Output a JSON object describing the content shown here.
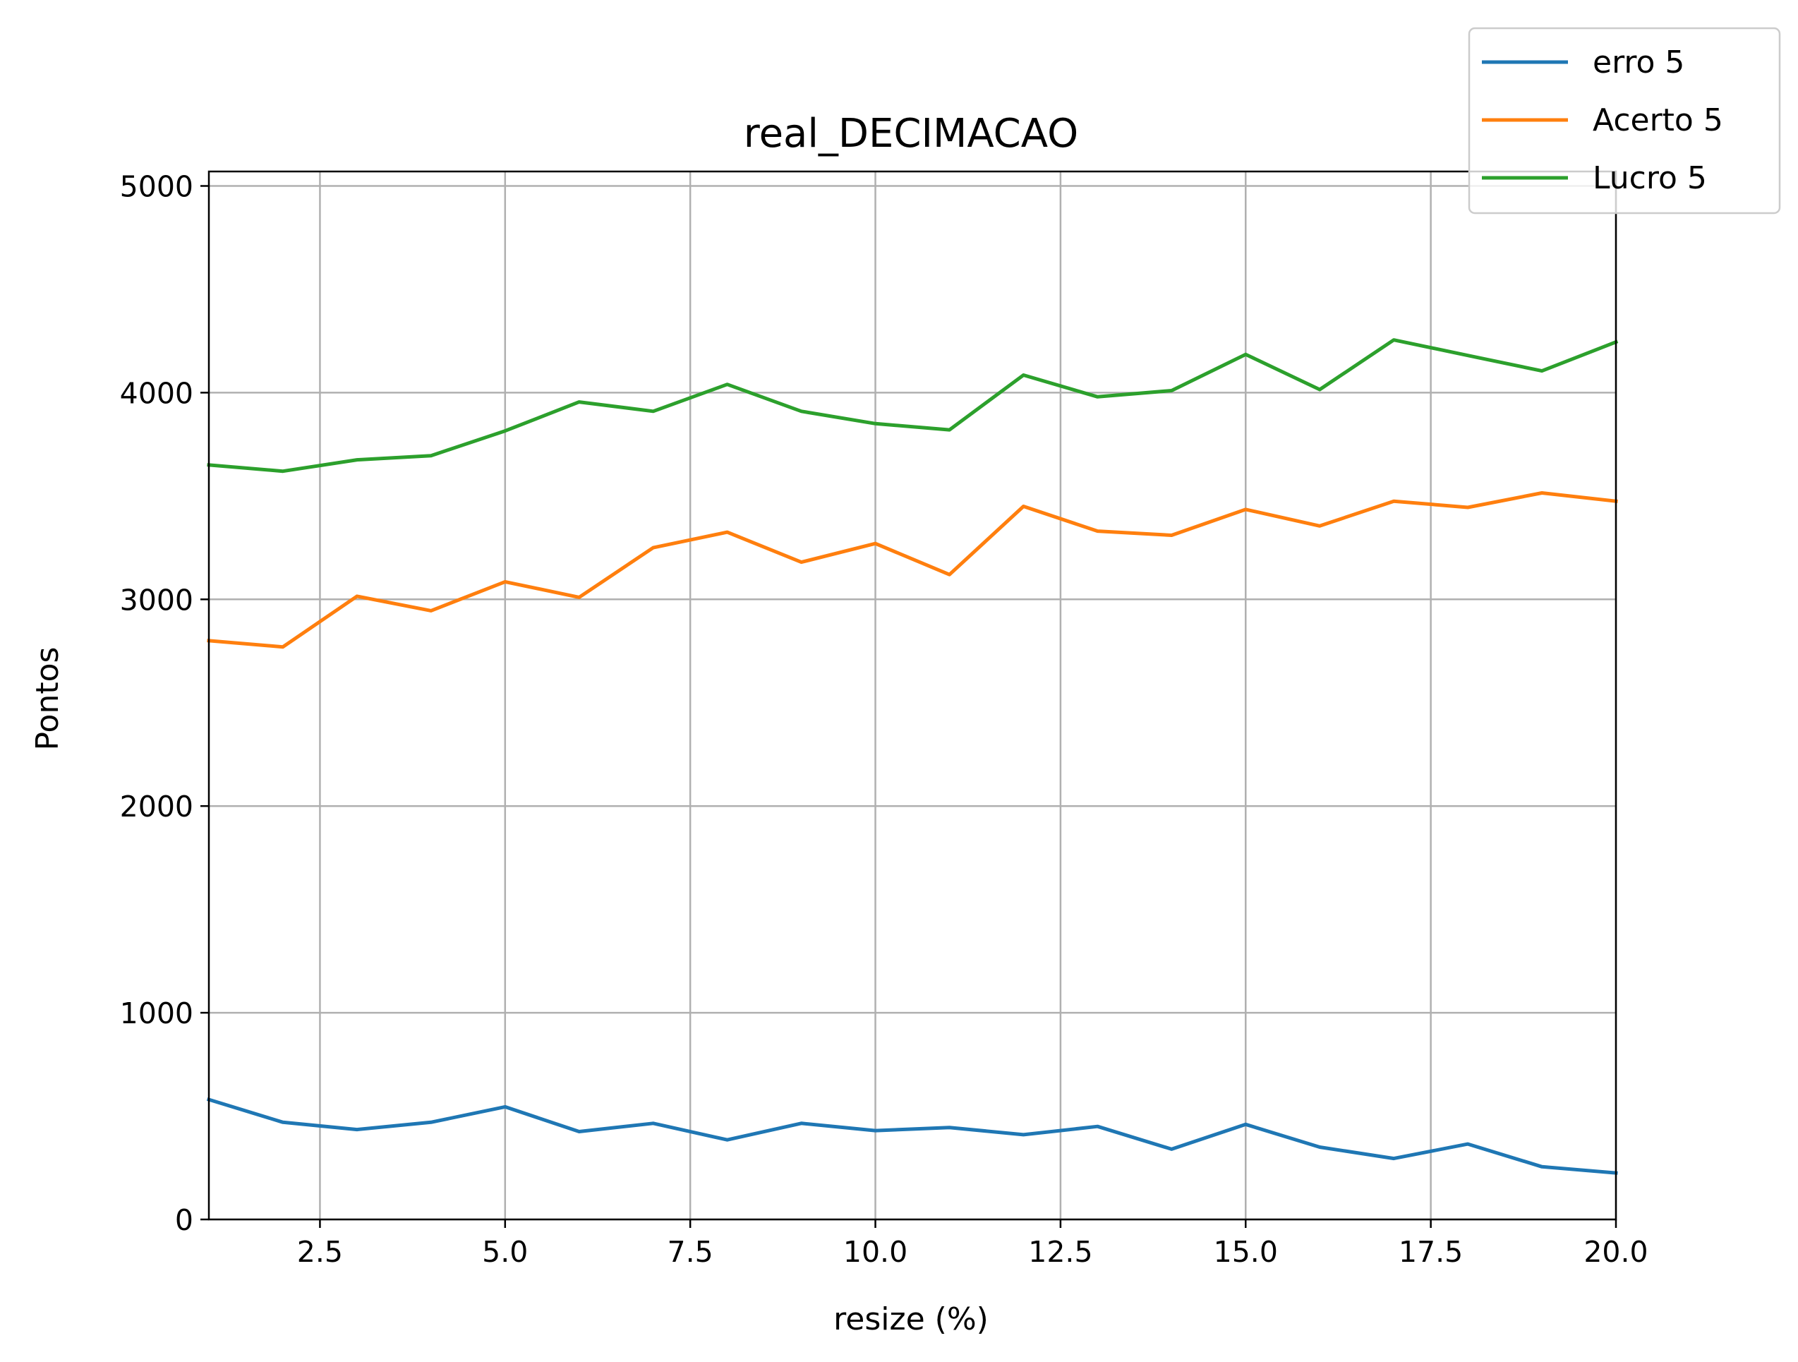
{
  "chart_data": {
    "type": "line",
    "title": "real_DECIMACAO",
    "xlabel": "resize (%)",
    "ylabel": "Pontos",
    "xlim": [
      1,
      20
    ],
    "ylim": [
      0,
      5070
    ],
    "xticks": [
      2.5,
      5.0,
      7.5,
      10.0,
      12.5,
      15.0,
      17.5,
      20.0
    ],
    "xtick_labels": [
      "2.5",
      "5.0",
      "7.5",
      "10.0",
      "12.5",
      "15.0",
      "17.5",
      "20.0"
    ],
    "yticks": [
      0,
      1000,
      2000,
      3000,
      4000,
      5000
    ],
    "ytick_labels": [
      "0",
      "1000",
      "2000",
      "3000",
      "4000",
      "5000"
    ],
    "grid": true,
    "legend_position": "top-right",
    "x": [
      1,
      2,
      3,
      4,
      5,
      6,
      7,
      8,
      9,
      10,
      11,
      12,
      13,
      14,
      15,
      16,
      17,
      18,
      19,
      20
    ],
    "series": [
      {
        "name": "erro 5",
        "color": "#1f77b4",
        "values": [
          580,
          470,
          435,
          470,
          545,
          425,
          465,
          385,
          465,
          430,
          445,
          410,
          450,
          340,
          460,
          350,
          295,
          365,
          255,
          225
        ]
      },
      {
        "name": "Acerto 5",
        "color": "#ff7f0e",
        "values": [
          2800,
          2770,
          3015,
          2945,
          3085,
          3010,
          3250,
          3325,
          3180,
          3270,
          3120,
          3450,
          3330,
          3310,
          3435,
          3355,
          3475,
          3445,
          3515,
          3475
        ]
      },
      {
        "name": "Lucro 5",
        "color": "#2ca02c",
        "values": [
          3650,
          3620,
          3675,
          3695,
          3815,
          3955,
          3910,
          4040,
          3910,
          3850,
          3820,
          4085,
          3980,
          4010,
          4185,
          4015,
          4255,
          4180,
          4105,
          4245
        ]
      }
    ]
  }
}
